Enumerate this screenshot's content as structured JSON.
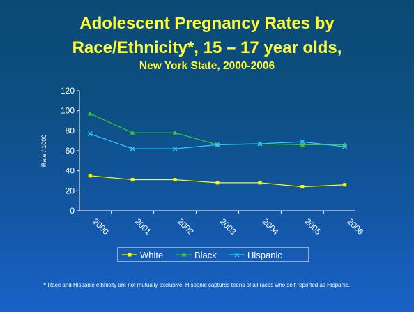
{
  "title": {
    "line1": "Adolescent Pregnancy Rates by",
    "line2": "Race/Ethnicity*, 15 – 17 year olds,",
    "subtitle": "New York State, 2000-2006"
  },
  "footnote": {
    "marker": "*",
    "text": " Race and Hispanic ethnicity are not mutually exclusive. Hispanic captures teens of all races who self-reported as Hispanic."
  },
  "colors": {
    "title": "#ffff33",
    "axis": "#ffffff",
    "white_series": "#ffff00",
    "black_series": "#33cc33",
    "hispanic_series": "#33ccff"
  },
  "chart_data": {
    "type": "line",
    "ylabel": "Rate / 1000",
    "ylim": [
      0,
      120
    ],
    "yticks": [
      0,
      20,
      40,
      60,
      80,
      100,
      120
    ],
    "categories": [
      "2000",
      "2001",
      "2002",
      "2003",
      "2004",
      "2005",
      "2006"
    ],
    "legend_position": "bottom",
    "grid": false,
    "series": [
      {
        "name": "White",
        "color": "#ffff00",
        "marker": "square",
        "values": [
          35,
          31,
          31,
          28,
          28,
          24,
          26
        ]
      },
      {
        "name": "Black",
        "color": "#33cc33",
        "marker": "triangle",
        "values": [
          97,
          78,
          78,
          66,
          67,
          66,
          66
        ]
      },
      {
        "name": "Hispanic",
        "color": "#33ccff",
        "marker": "x",
        "values": [
          77,
          62,
          62,
          66,
          67,
          69,
          64
        ]
      }
    ]
  }
}
